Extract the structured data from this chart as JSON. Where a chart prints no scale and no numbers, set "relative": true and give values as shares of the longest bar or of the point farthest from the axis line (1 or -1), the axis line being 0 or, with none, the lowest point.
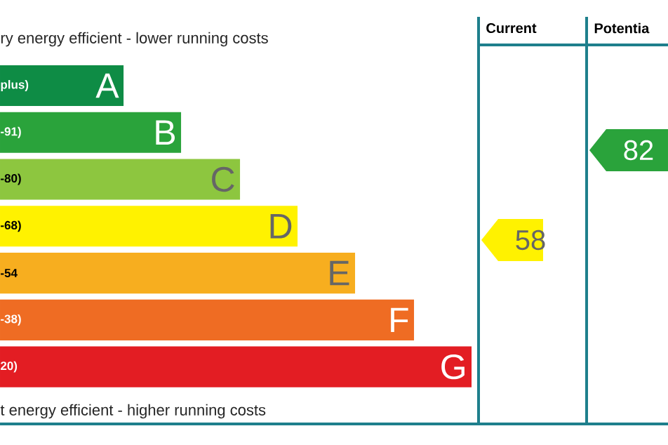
{
  "chart_data": [
    {
      "type": "bar",
      "orientation": "horizontal",
      "relative": true,
      "title": "ry energy efficient - lower running costs",
      "categories": [
        "A",
        "B",
        "C",
        "D",
        "E",
        "F",
        "G"
      ],
      "values": [
        0.262,
        0.384,
        0.509,
        0.631,
        0.753,
        0.878,
        1
      ],
      "colors": [
        "#0e8c45",
        "#2aa33b",
        "#8dc63f",
        "#fff200",
        "#f7ae1f",
        "#ef6c23",
        "#e31d23"
      ],
      "annotations": [
        "plus)",
        "-91)",
        "-80)",
        "-68)",
        "-54",
        "-38)",
        "20)",
        "t energy efficient - higher running costs"
      ]
    },
    {
      "type": "other",
      "categories": [
        "Current",
        "Potentia"
      ],
      "values": [
        58,
        82
      ],
      "data_labels": true,
      "colors": [
        "#fff200",
        "#2aa33b"
      ]
    }
  ]
}
